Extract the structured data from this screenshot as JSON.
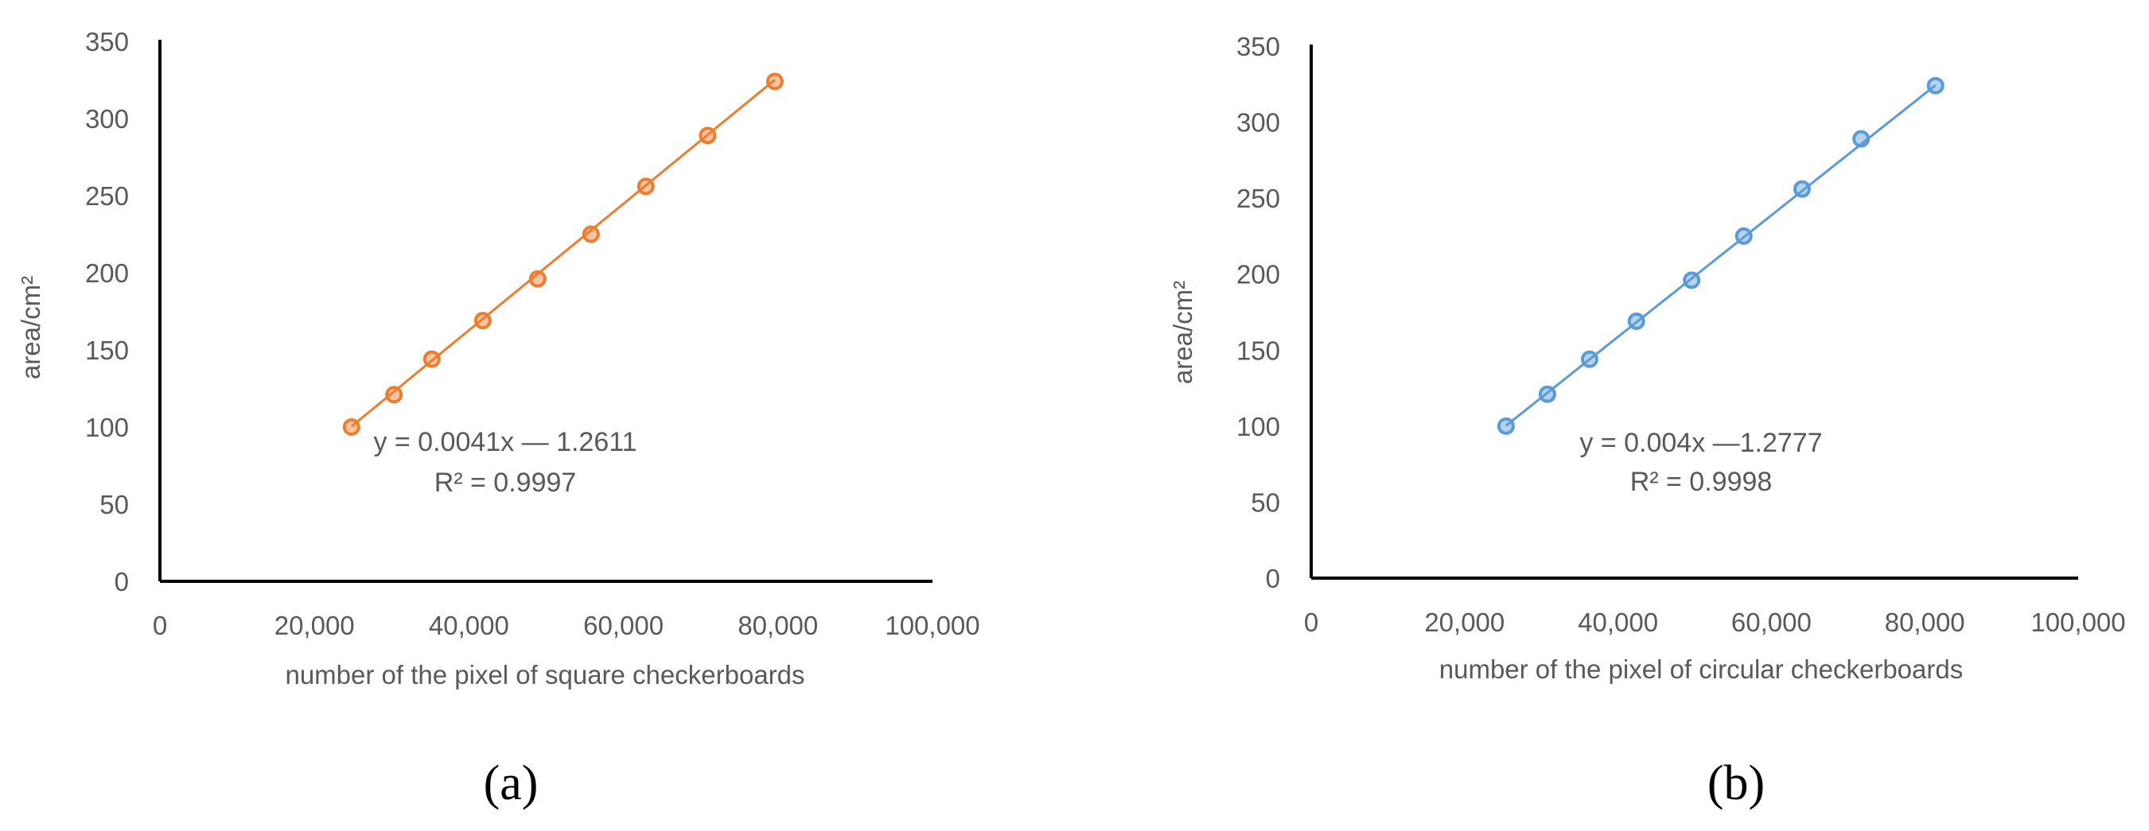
{
  "chart_data": [
    {
      "type": "scatter",
      "panel_label": "(a)",
      "xlabel": "number of the pixel of square checkerboards",
      "ylabel": "area/cm²",
      "xlim": [
        0,
        100000
      ],
      "ylim": [
        0,
        350
      ],
      "x_ticks": [
        0,
        20000,
        40000,
        60000,
        80000,
        100000
      ],
      "x_tick_labels": [
        "0",
        "20,000",
        "40,000",
        "60,000",
        "80,000",
        "100,000"
      ],
      "y_ticks": [
        0,
        50,
        100,
        150,
        200,
        250,
        300,
        350
      ],
      "y_tick_labels": [
        "0",
        "50",
        "100",
        "150",
        "200",
        "250",
        "300",
        "350"
      ],
      "grid": false,
      "color": "#ed7d31",
      "series": [
        {
          "x": [
            24800,
            30300,
            35200,
            41800,
            48900,
            55800,
            62900,
            70900,
            79600
          ],
          "y": [
            100,
            121,
            144,
            169,
            196,
            225,
            256,
            289,
            324
          ]
        }
      ],
      "trendline": {
        "slope": 0.0041,
        "intercept": -1.2611,
        "x_range": [
          24800,
          79600
        ]
      },
      "annotations": [
        "y = 0.0041x — 1.2611",
        "R² = 0.9997"
      ]
    },
    {
      "type": "scatter",
      "panel_label": "(b)",
      "xlabel": "number of the pixel of circular checkerboards",
      "ylabel": "area/cm²",
      "xlim": [
        0,
        100000
      ],
      "ylim": [
        0,
        350
      ],
      "x_ticks": [
        0,
        20000,
        40000,
        60000,
        80000,
        100000
      ],
      "x_tick_labels": [
        "0",
        "20,000",
        "40,000",
        "60,000",
        "80,000",
        "100,000"
      ],
      "y_ticks": [
        0,
        50,
        100,
        150,
        200,
        250,
        300,
        350
      ],
      "y_tick_labels": [
        "0",
        "50",
        "100",
        "150",
        "200",
        "250",
        "300",
        "350"
      ],
      "grid": false,
      "color": "#5b9bd5",
      "series": [
        {
          "x": [
            25400,
            30800,
            36300,
            42400,
            49600,
            56400,
            64000,
            71700,
            81400
          ],
          "y": [
            100,
            121,
            144,
            169,
            196,
            225,
            256,
            289,
            324
          ]
        }
      ],
      "trendline": {
        "slope": 0.004,
        "intercept": -1.2777,
        "x_range": [
          25400,
          81400
        ]
      },
      "annotations": [
        "y = 0.004x —1.2777",
        "R² = 0.9998"
      ]
    }
  ]
}
